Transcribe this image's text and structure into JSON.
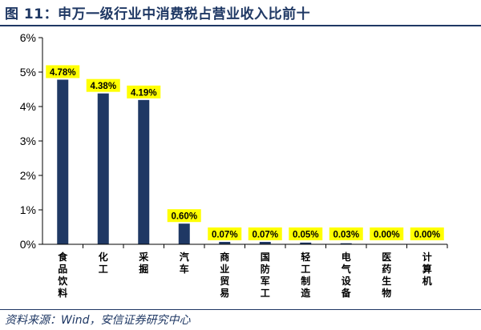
{
  "title": "图 11：申万一级行业中消费税占营业收入比前十",
  "source": "资料来源：Wind，安信证券研究中心",
  "colors": {
    "bar": "#1f3864",
    "label_bg": "#ffff00",
    "axis": "#000000",
    "title": "#1f3864"
  },
  "chart_data": {
    "type": "bar",
    "categories": [
      "食品饮料",
      "化工",
      "采掘",
      "汽车",
      "商业贸易",
      "国防军工",
      "轻工制造",
      "电气设备",
      "医药生物",
      "计算机"
    ],
    "values": [
      4.78,
      4.38,
      4.19,
      0.6,
      0.07,
      0.07,
      0.05,
      0.03,
      0.0,
      0.0
    ],
    "data_labels": [
      "4.78%",
      "4.38%",
      "4.19%",
      "0.60%",
      "0.07%",
      "0.07%",
      "0.05%",
      "0.03%",
      "0.00%",
      "0.00%"
    ],
    "y_ticks": [
      "0%",
      "1%",
      "2%",
      "3%",
      "4%",
      "5%",
      "6%"
    ],
    "ylim": [
      0,
      6
    ],
    "unit": "%",
    "title": "",
    "xlabel": "",
    "ylabel": "",
    "grid": false,
    "legend": "none"
  }
}
